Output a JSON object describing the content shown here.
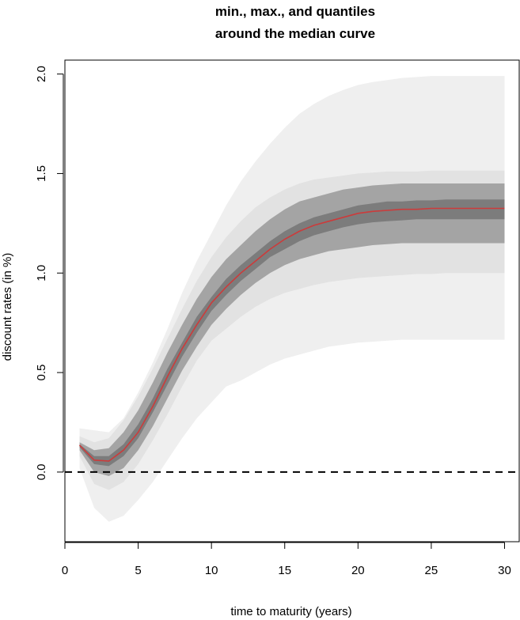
{
  "chart_data": {
    "type": "area",
    "title_lines": [
      "min., max., and quantiles",
      "around the median curve"
    ],
    "xlabel": "time to maturity (years)",
    "ylabel": "discount rates (in %)",
    "xlim": [
      0,
      31
    ],
    "ylim": [
      -0.35,
      2.07
    ],
    "x_ticks": [
      0,
      5,
      10,
      15,
      20,
      25,
      30
    ],
    "y_ticks": [
      0.0,
      0.5,
      1.0,
      1.5,
      2.0
    ],
    "x_tick_labels": [
      "0",
      "5",
      "10",
      "15",
      "20",
      "25",
      "30"
    ],
    "y_tick_labels": [
      "0.0",
      "0.5",
      "1.0",
      "1.5",
      "2.0"
    ],
    "reference_line": {
      "y": 0.0,
      "style": "dashed",
      "color": "#000000"
    },
    "x": [
      1,
      2,
      3,
      4,
      5,
      6,
      7,
      8,
      9,
      10,
      11,
      12,
      13,
      14,
      15,
      16,
      17,
      18,
      19,
      20,
      21,
      22,
      23,
      24,
      25,
      26,
      27,
      28,
      29,
      30
    ],
    "series": [
      {
        "role": "min",
        "color": "#efefef",
        "values": [
          0.02,
          -0.18,
          -0.25,
          -0.22,
          -0.14,
          -0.05,
          0.06,
          0.17,
          0.27,
          0.35,
          0.43,
          0.46,
          0.5,
          0.54,
          0.57,
          0.59,
          0.61,
          0.63,
          0.64,
          0.65,
          0.655,
          0.66,
          0.665,
          0.665,
          0.665,
          0.665,
          0.665,
          0.665,
          0.665,
          0.665
        ]
      },
      {
        "role": "max",
        "color": "#efefef",
        "values": [
          0.22,
          0.21,
          0.2,
          0.27,
          0.4,
          0.55,
          0.72,
          0.9,
          1.06,
          1.2,
          1.34,
          1.46,
          1.56,
          1.65,
          1.73,
          1.8,
          1.85,
          1.89,
          1.92,
          1.945,
          1.96,
          1.97,
          1.98,
          1.985,
          1.99,
          1.99,
          1.99,
          1.99,
          1.99,
          1.99
        ]
      },
      {
        "role": "q_outer_low",
        "color": "#e2e2e2",
        "values": [
          0.08,
          -0.06,
          -0.09,
          -0.05,
          0.04,
          0.16,
          0.29,
          0.43,
          0.56,
          0.66,
          0.72,
          0.78,
          0.83,
          0.87,
          0.9,
          0.92,
          0.94,
          0.955,
          0.965,
          0.975,
          0.98,
          0.985,
          0.99,
          0.995,
          0.995,
          1.0,
          1.0,
          1.0,
          1.0,
          1.0
        ]
      },
      {
        "role": "q_outer_high",
        "color": "#e2e2e2",
        "values": [
          0.18,
          0.15,
          0.17,
          0.26,
          0.38,
          0.52,
          0.67,
          0.82,
          0.96,
          1.08,
          1.18,
          1.26,
          1.33,
          1.38,
          1.42,
          1.45,
          1.47,
          1.48,
          1.49,
          1.5,
          1.505,
          1.51,
          1.51,
          1.51,
          1.515,
          1.515,
          1.515,
          1.515,
          1.515,
          1.515
        ]
      },
      {
        "role": "q_inner_low",
        "color": "#a4a4a4",
        "values": [
          0.11,
          0.0,
          -0.02,
          0.02,
          0.11,
          0.23,
          0.37,
          0.51,
          0.63,
          0.74,
          0.82,
          0.89,
          0.95,
          1.0,
          1.04,
          1.07,
          1.09,
          1.11,
          1.12,
          1.13,
          1.14,
          1.145,
          1.15,
          1.15,
          1.15,
          1.15,
          1.15,
          1.15,
          1.15,
          1.15
        ]
      },
      {
        "role": "q_inner_high",
        "color": "#a4a4a4",
        "values": [
          0.15,
          0.11,
          0.12,
          0.2,
          0.31,
          0.45,
          0.6,
          0.74,
          0.87,
          0.98,
          1.07,
          1.14,
          1.21,
          1.27,
          1.32,
          1.36,
          1.38,
          1.4,
          1.42,
          1.43,
          1.44,
          1.445,
          1.45,
          1.45,
          1.45,
          1.45,
          1.45,
          1.45,
          1.45,
          1.45
        ]
      },
      {
        "role": "q_core_low",
        "color": "#7c7c7c",
        "values": [
          0.125,
          0.04,
          0.03,
          0.08,
          0.17,
          0.3,
          0.44,
          0.58,
          0.7,
          0.81,
          0.89,
          0.96,
          1.02,
          1.08,
          1.12,
          1.16,
          1.19,
          1.21,
          1.23,
          1.245,
          1.255,
          1.26,
          1.265,
          1.27,
          1.27,
          1.27,
          1.27,
          1.27,
          1.27,
          1.27
        ]
      },
      {
        "role": "q_core_high",
        "color": "#7c7c7c",
        "values": [
          0.14,
          0.08,
          0.08,
          0.14,
          0.24,
          0.37,
          0.52,
          0.65,
          0.78,
          0.88,
          0.97,
          1.04,
          1.1,
          1.16,
          1.21,
          1.25,
          1.28,
          1.3,
          1.32,
          1.34,
          1.35,
          1.36,
          1.36,
          1.365,
          1.365,
          1.37,
          1.37,
          1.37,
          1.37,
          1.37
        ]
      },
      {
        "role": "median",
        "color": "#cc3b3b",
        "values": [
          0.135,
          0.06,
          0.055,
          0.11,
          0.2,
          0.33,
          0.48,
          0.62,
          0.74,
          0.85,
          0.93,
          1.0,
          1.06,
          1.12,
          1.17,
          1.21,
          1.24,
          1.26,
          1.28,
          1.3,
          1.31,
          1.315,
          1.32,
          1.32,
          1.325,
          1.325,
          1.325,
          1.325,
          1.325,
          1.325
        ]
      }
    ]
  }
}
